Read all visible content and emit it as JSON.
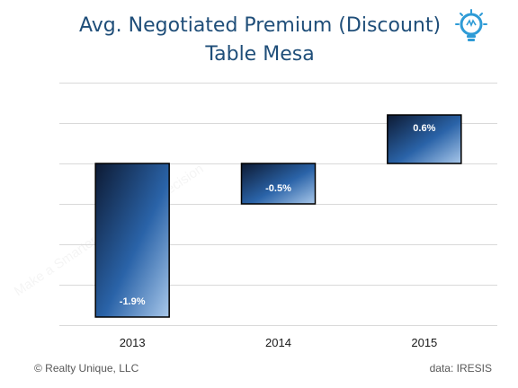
{
  "chart_data": {
    "type": "bar",
    "title_lines": [
      "Avg. Negotiated Premium (Discount)",
      "Table Mesa"
    ],
    "categories": [
      "2013",
      "2014",
      "2015"
    ],
    "values": [
      -1.9,
      -0.5,
      0.6
    ],
    "value_labels": [
      "-1.9%",
      "-0.5%",
      "0.6%"
    ],
    "ylim": [
      -2.0,
      1.0
    ],
    "gridline_step": 0.5,
    "grid": true,
    "xlabel": "",
    "ylabel": "",
    "legend": "none"
  },
  "footer": {
    "copyright": "© Realty Unique, LLC",
    "source": "data:  IRESIS"
  },
  "logo": {
    "icon": "lightbulb-icon",
    "color": "#2e9bd6"
  },
  "watermark": {
    "text": "Make a Smarter Real Estate Decision"
  },
  "colors": {
    "bar_dark": "#0d1a33",
    "bar_mid": "#2a63a8",
    "bar_light": "#a9c8ea",
    "grid": "#d9d9d9",
    "title": "#1f4e79"
  }
}
